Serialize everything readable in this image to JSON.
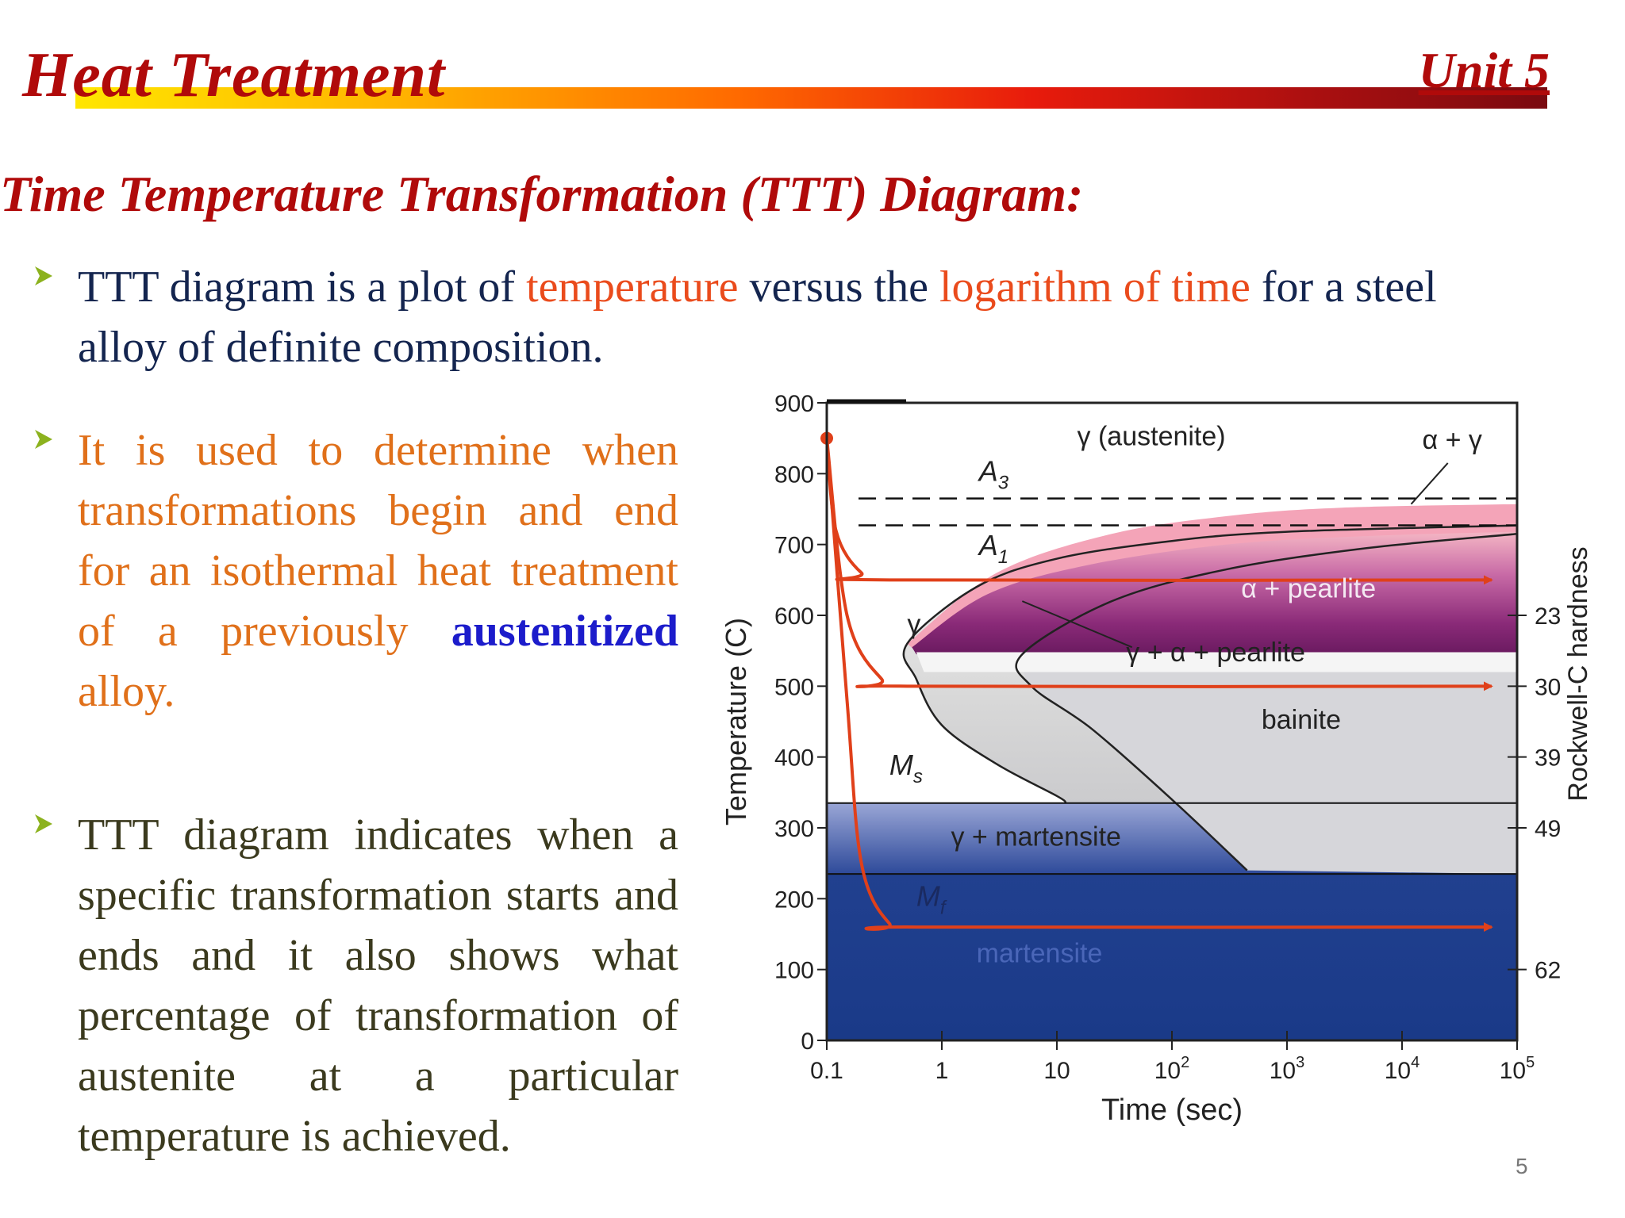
{
  "header": {
    "title": "Heat Treatment",
    "unit": "Unit 5"
  },
  "slide": {
    "heading": "Time Temperature Transformation (TTT) Diagram:",
    "page_number": "5"
  },
  "bullets": {
    "b1": {
      "part1": "TTT diagram is a plot of ",
      "part2": "temperature",
      "part3": " versus the ",
      "part4": "logarithm of time",
      "part5": " for a steel alloy of definite composition."
    },
    "b2": {
      "part1": "It is used to determine when transformations begin and end for an isothermal heat treatment of a previously ",
      "part2": "austenitized",
      "part3": " alloy."
    },
    "b3": {
      "text": "TTT diagram indicates when a specific transformation starts and ends and it also shows what percentage of transformation of austenite at a particular temperature is achieved."
    }
  },
  "colors": {
    "title_red": "#b00a0a",
    "bullet_navy": "#14254f",
    "bullet_orange": "#e0701a",
    "bullet_olive": "#3b3a1e",
    "accent_red": "#ea4b1c",
    "accent_blue": "#1c1ccb",
    "arrow_green": "#8cb21e",
    "curve_red": "#e0401a",
    "martensite_blue": "#1e3e8c",
    "pearlite_purple": "#8a2a78",
    "pink": "#f0a0b4"
  },
  "chart_data": {
    "type": "line",
    "xlabel": "Time (sec)",
    "ylabel": "Temperature (C)",
    "y2label": "Rockwell-C hardness",
    "x_scale": "log",
    "xlim": [
      0.1,
      100000
    ],
    "ylim": [
      0,
      900
    ],
    "x_ticks": [
      {
        "value": 0.1,
        "base": "0.1",
        "exp": ""
      },
      {
        "value": 1,
        "base": "1",
        "exp": ""
      },
      {
        "value": 10,
        "base": "10",
        "exp": ""
      },
      {
        "value": 100,
        "base": "10",
        "exp": "2"
      },
      {
        "value": 1000,
        "base": "10",
        "exp": "3"
      },
      {
        "value": 10000,
        "base": "10",
        "exp": "4"
      },
      {
        "value": 100000,
        "base": "10",
        "exp": "5"
      }
    ],
    "y_ticks": [
      0,
      100,
      200,
      300,
      400,
      500,
      600,
      700,
      800,
      900
    ],
    "hardness_ticks": [
      {
        "temp": 600,
        "label": "23"
      },
      {
        "temp": 500,
        "label": "30"
      },
      {
        "temp": 400,
        "label": "39"
      },
      {
        "temp": 300,
        "label": "49"
      },
      {
        "temp": 100,
        "label": "62"
      }
    ],
    "reference_lines": [
      {
        "name": "A3",
        "base": "A",
        "sub": "3",
        "temp": 765
      },
      {
        "name": "A1",
        "base": "A",
        "sub": "1",
        "temp": 727
      },
      {
        "name": "Ms",
        "base": "M",
        "sub": "s",
        "temp": 335
      },
      {
        "name": "Mf",
        "base": "M",
        "sub": "f",
        "temp": 235
      }
    ],
    "region_labels": {
      "austenite": "γ (austenite)",
      "alpha_gamma": "α + γ",
      "gamma": "γ",
      "alpha_pearlite": "α + pearlite",
      "gamma_alpha_pearlite": "γ + α + pearlite",
      "bainite": "bainite",
      "gamma_martensite": "γ + martensite",
      "martensite": "martensite"
    },
    "start_curve": [
      [
        0.5,
        560
      ],
      [
        0.6,
        510
      ],
      [
        1,
        445
      ],
      [
        3,
        390
      ],
      [
        10,
        345
      ],
      [
        12,
        335
      ]
    ],
    "start_curve_upper": [
      [
        0.5,
        560
      ],
      [
        2,
        640
      ],
      [
        10,
        680
      ],
      [
        100,
        705
      ],
      [
        1000,
        718
      ],
      [
        100000,
        727
      ]
    ],
    "end_curve": [
      [
        5,
        545
      ],
      [
        6,
        500
      ],
      [
        20,
        440
      ],
      [
        100,
        340
      ],
      [
        450,
        240
      ]
    ],
    "end_curve_upper": [
      [
        5,
        545
      ],
      [
        30,
        620
      ],
      [
        300,
        665
      ],
      [
        5000,
        695
      ],
      [
        100000,
        715
      ]
    ],
    "cooling_paths": [
      {
        "hold_temp": 650,
        "points": [
          [
            0.1,
            850
          ],
          [
            0.12,
            720
          ],
          [
            0.2,
            660
          ],
          [
            0.35,
            650
          ],
          [
            60000,
            650
          ]
        ]
      },
      {
        "hold_temp": 500,
        "points": [
          [
            0.1,
            850
          ],
          [
            0.15,
            600
          ],
          [
            0.3,
            510
          ],
          [
            0.5,
            500
          ],
          [
            60000,
            500
          ]
        ]
      },
      {
        "hold_temp": 160,
        "points": [
          [
            0.1,
            850
          ],
          [
            0.15,
            480
          ],
          [
            0.2,
            250
          ],
          [
            0.35,
            165
          ],
          [
            0.6,
            160
          ],
          [
            60000,
            160
          ]
        ]
      }
    ]
  }
}
